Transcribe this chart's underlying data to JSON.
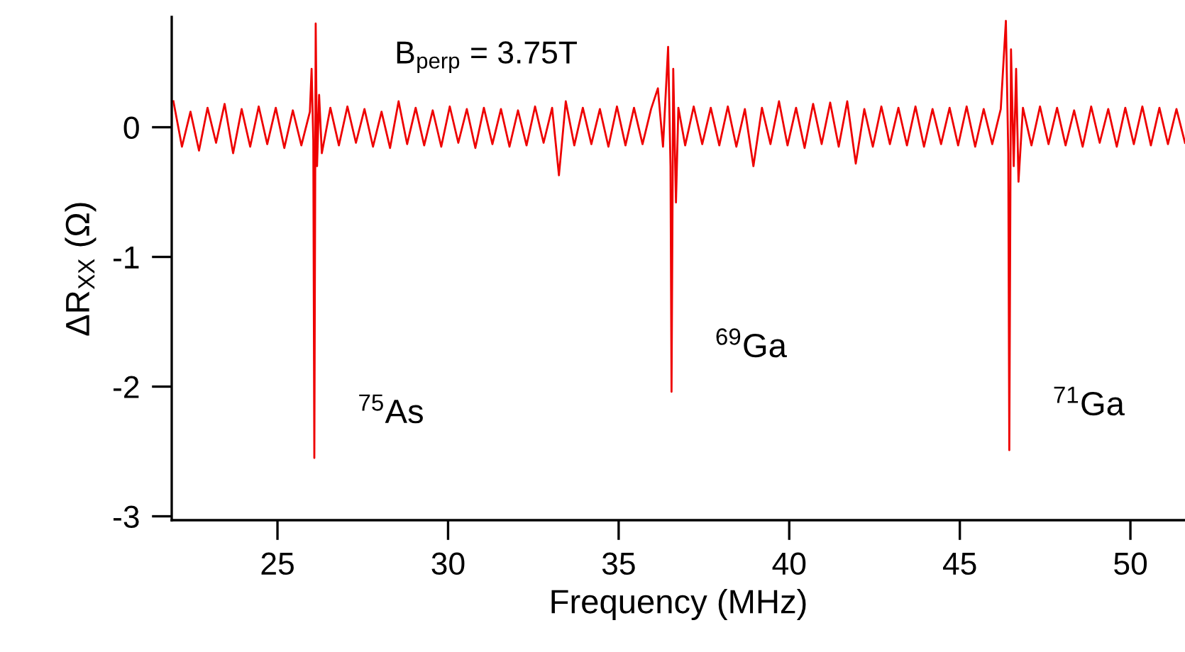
{
  "chart_data": {
    "type": "line",
    "xlabel": "Frequency (MHz)",
    "ylabel": "ΔR$_{XX}$ (Ω)",
    "xlim": [
      21.9,
      51.6
    ],
    "ylim": [
      -3.03,
      0.85
    ],
    "xticks": [
      25,
      30,
      35,
      40,
      45,
      50
    ],
    "yticks": [
      -3,
      -2,
      -1,
      0
    ],
    "grid": false,
    "legend": false,
    "marker": "none",
    "line_style": "solid",
    "annotations": [
      "B$_{perp}$ = 3.75T",
      {
        "text": "$^{75}$As",
        "x": 26.08,
        "y": -2.55
      },
      {
        "text": "$^{69}$Ga",
        "x": 36.55,
        "y": -2.04
      },
      {
        "text": "$^{71}$Ga",
        "x": 46.45,
        "y": -2.49
      }
    ],
    "series": [
      {
        "color": "#ee0000",
        "x": [
          21.95,
          22.2,
          22.45,
          22.7,
          22.95,
          23.2,
          23.45,
          23.7,
          23.95,
          24.2,
          24.45,
          24.7,
          24.95,
          25.2,
          25.45,
          25.7,
          25.95,
          26.0,
          26.05,
          26.08,
          26.12,
          26.16,
          26.22,
          26.3,
          26.55,
          26.8,
          27.05,
          27.3,
          27.55,
          27.8,
          28.05,
          28.3,
          28.55,
          28.8,
          29.05,
          29.3,
          29.55,
          29.8,
          30.05,
          30.3,
          30.55,
          30.8,
          31.05,
          31.3,
          31.55,
          31.8,
          32.05,
          32.3,
          32.55,
          32.8,
          33.05,
          33.25,
          33.45,
          33.7,
          33.95,
          34.2,
          34.45,
          34.7,
          34.95,
          35.2,
          35.45,
          35.7,
          35.95,
          36.15,
          36.3,
          36.45,
          36.52,
          36.55,
          36.6,
          36.68,
          36.75,
          36.95,
          37.2,
          37.45,
          37.7,
          37.95,
          38.2,
          38.45,
          38.7,
          38.95,
          39.2,
          39.45,
          39.7,
          39.95,
          40.2,
          40.45,
          40.7,
          40.95,
          41.2,
          41.45,
          41.7,
          41.95,
          42.2,
          42.45,
          42.7,
          42.95,
          43.2,
          43.45,
          43.7,
          43.95,
          44.2,
          44.45,
          44.7,
          44.95,
          45.2,
          45.45,
          45.7,
          45.95,
          46.2,
          46.35,
          46.42,
          46.45,
          46.5,
          46.58,
          46.65,
          46.72,
          46.85,
          47.1,
          47.35,
          47.6,
          47.85,
          48.1,
          48.35,
          48.6,
          48.85,
          49.1,
          49.35,
          49.6,
          49.85,
          50.1,
          50.35,
          50.6,
          50.85,
          51.1,
          51.35,
          51.6
        ],
        "values": [
          0.2,
          -0.15,
          0.12,
          -0.18,
          0.15,
          -0.12,
          0.18,
          -0.2,
          0.14,
          -0.15,
          0.16,
          -0.13,
          0.15,
          -0.16,
          0.13,
          -0.14,
          0.12,
          0.45,
          -0.1,
          -2.55,
          0.8,
          -0.3,
          0.25,
          -0.2,
          0.15,
          -0.14,
          0.16,
          -0.12,
          0.14,
          -0.15,
          0.12,
          -0.16,
          0.2,
          -0.13,
          0.15,
          -0.14,
          0.13,
          -0.15,
          0.16,
          -0.12,
          0.14,
          -0.16,
          0.15,
          -0.13,
          0.14,
          -0.15,
          0.13,
          -0.14,
          0.16,
          -0.12,
          0.15,
          -0.37,
          0.2,
          -0.14,
          0.15,
          -0.13,
          0.14,
          -0.15,
          0.16,
          -0.14,
          0.15,
          -0.13,
          0.14,
          0.3,
          -0.15,
          0.62,
          -0.3,
          -2.04,
          0.45,
          -0.58,
          0.15,
          -0.14,
          0.16,
          -0.13,
          0.15,
          -0.14,
          0.16,
          -0.15,
          0.14,
          -0.3,
          0.15,
          -0.13,
          0.2,
          -0.14,
          0.15,
          -0.16,
          0.18,
          -0.13,
          0.19,
          -0.15,
          0.2,
          -0.28,
          0.14,
          -0.15,
          0.16,
          -0.13,
          0.15,
          -0.14,
          0.16,
          -0.15,
          0.14,
          -0.13,
          0.15,
          -0.14,
          0.16,
          -0.15,
          0.14,
          -0.13,
          0.14,
          0.82,
          -0.2,
          -2.49,
          0.6,
          -0.3,
          0.45,
          -0.42,
          0.15,
          -0.14,
          0.16,
          -0.13,
          0.15,
          -0.14,
          0.13,
          -0.15,
          0.16,
          -0.12,
          0.14,
          -0.15,
          0.15,
          -0.13,
          0.16,
          -0.14,
          0.15,
          -0.13,
          0.14,
          -0.12
        ]
      }
    ]
  }
}
